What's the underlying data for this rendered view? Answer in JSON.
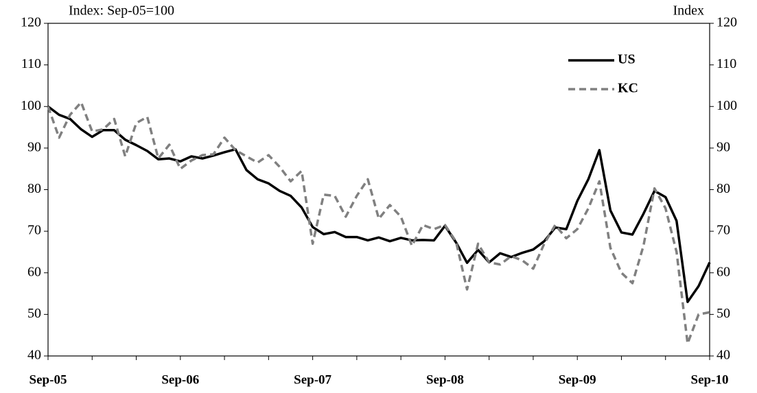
{
  "chart_data": {
    "type": "line",
    "y_label": "Index: Sep-05=100",
    "y2_label": "Index",
    "categories": [
      "Sep-05",
      null,
      null,
      null,
      null,
      null,
      null,
      null,
      null,
      null,
      null,
      null,
      "Sep-06",
      null,
      null,
      null,
      null,
      null,
      null,
      null,
      null,
      null,
      null,
      null,
      "Sep-07",
      null,
      null,
      null,
      null,
      null,
      null,
      null,
      null,
      null,
      null,
      null,
      "Sep-08",
      null,
      null,
      null,
      null,
      null,
      null,
      null,
      null,
      null,
      null,
      null,
      "Sep-09",
      null,
      null,
      null,
      null,
      null,
      null,
      null,
      null,
      null,
      null,
      null,
      "Sep-10"
    ],
    "series": [
      {
        "name": "US",
        "color": "#000000",
        "style": "solid",
        "values": [
          100,
          98,
          97,
          94.5,
          92.7,
          94.3,
          94.3,
          92,
          90.7,
          89.3,
          87.3,
          87.5,
          86.8,
          88,
          87.5,
          88.2,
          89,
          89.7,
          84.7,
          82.5,
          81.5,
          79.7,
          78.5,
          75.7,
          71,
          69.3,
          69.8,
          68.6,
          68.6,
          67.8,
          68.5,
          67.6,
          68.4,
          67.8,
          67.9,
          67.8,
          71.3,
          67.3,
          62.4,
          65.5,
          62.5,
          64.7,
          63.8,
          64.8,
          65.6,
          67.6,
          70.9,
          70.5,
          77.3,
          82.5,
          89.5,
          75,
          69.7,
          69.2,
          74.2,
          79.7,
          78.2,
          72.5,
          53,
          56.8,
          62.5
        ]
      },
      {
        "name": "KC",
        "color": "#808080",
        "style": "dashed",
        "values": [
          100,
          92.5,
          98,
          101,
          94,
          94.5,
          97,
          88,
          96,
          97.5,
          87.5,
          90.8,
          85,
          87,
          88.3,
          88.5,
          92.5,
          89.5,
          88,
          86.5,
          88.3,
          85.5,
          82,
          84.5,
          67,
          78.8,
          78.5,
          73.5,
          78.5,
          82.5,
          73,
          76.3,
          73.5,
          66.5,
          71.5,
          70.5,
          71.5,
          67.5,
          56,
          67,
          62.5,
          62,
          64,
          63,
          61,
          67,
          71.5,
          68.3,
          70.5,
          75.5,
          82,
          66,
          60,
          57.5,
          66.5,
          80.3,
          75.5,
          65,
          43,
          50,
          50.5
        ]
      }
    ],
    "ylim": [
      40,
      120
    ],
    "yticks": [
      40,
      50,
      60,
      70,
      80,
      90,
      100,
      110,
      120
    ],
    "y2lim": [
      40,
      120
    ],
    "y2ticks": [
      40,
      50,
      60,
      70,
      80,
      90,
      100,
      110,
      120
    ],
    "legend": "upper right"
  }
}
